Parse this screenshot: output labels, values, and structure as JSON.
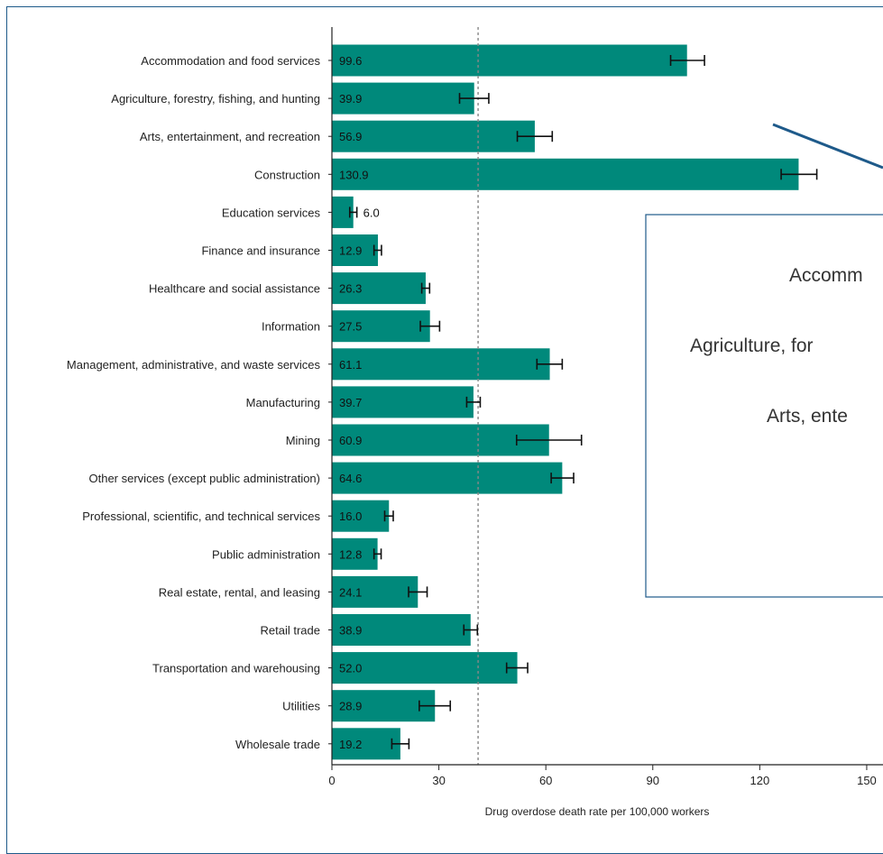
{
  "chart_data": {
    "type": "bar",
    "orientation": "horizontal",
    "categories": [
      "Accommodation and food services",
      "Agriculture, forestry, fishing, and hunting",
      "Arts, entertainment, and recreation",
      "Construction",
      "Education services",
      "Finance and insurance",
      "Healthcare and social assistance",
      "Information",
      "Management, administrative, and waste services",
      "Manufacturing",
      "Mining",
      "Other services (except public administration)",
      "Professional, scientific, and technical services",
      "Public administration",
      "Real estate, rental, and leasing",
      "Retail trade",
      "Transportation and warehousing",
      "Utilities",
      "Wholesale trade"
    ],
    "values": [
      99.6,
      39.9,
      56.9,
      130.9,
      6.0,
      12.9,
      26.3,
      27.5,
      61.1,
      39.7,
      60.9,
      64.6,
      16.0,
      12.8,
      24.1,
      38.9,
      52.0,
      28.9,
      19.2
    ],
    "value_labels": [
      "99.6",
      "39.9",
      "56.9",
      "130.9",
      "6.0",
      "12.9",
      "26.3",
      "27.5",
      "61.1",
      "39.7",
      "60.9",
      "64.6",
      "16.0",
      "12.8",
      "24.1",
      "38.9",
      "52.0",
      "28.9",
      "19.2"
    ],
    "error_low": [
      95.0,
      35.8,
      52.0,
      126.0,
      5.0,
      11.8,
      25.2,
      24.8,
      57.5,
      37.8,
      51.8,
      61.5,
      14.8,
      11.8,
      21.5,
      37.0,
      49.0,
      24.5,
      16.8
    ],
    "error_high": [
      104.5,
      44.0,
      61.8,
      136.0,
      7.0,
      13.9,
      27.4,
      30.2,
      64.6,
      41.6,
      70.0,
      67.8,
      17.2,
      13.8,
      26.7,
      40.8,
      54.9,
      33.2,
      21.6
    ],
    "reference_line": 41.0,
    "xlabel": "Drug overdose death rate per 100,000 workers",
    "ylabel": "",
    "x_ticks": [
      0,
      30,
      60,
      90,
      120,
      150
    ],
    "xlim": [
      0,
      150
    ],
    "grid": false,
    "bar_color": "#00897b",
    "error_bar_color": "#111111",
    "reference_line_color": "#888888"
  },
  "inset": {
    "lines": [
      "Accomm",
      "Agriculture, for",
      "Arts, ente"
    ],
    "border_color": "#1e5a8a",
    "arrow_color": "#1e5a8a"
  },
  "frame_color": "#1e5a8a"
}
